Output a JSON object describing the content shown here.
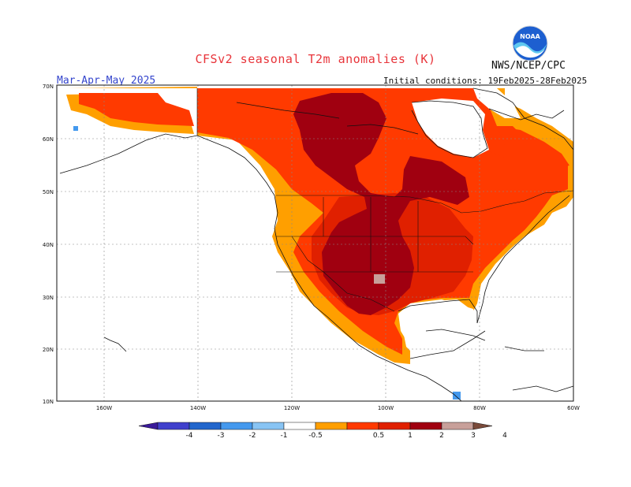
{
  "title": "CFSv2 seasonal T2m anomalies (K)",
  "agency": "NWS/NCEP/CPC",
  "period": "Mar-Apr-May 2025",
  "initial_conditions": "Initial conditions: 19Feb2025-28Feb2025",
  "lat_labels": [
    "70N",
    "60N",
    "50N",
    "40N",
    "30N",
    "20N",
    "10N"
  ],
  "lon_labels": [
    "160W",
    "140W",
    "120W",
    "100W",
    "80W",
    "60W"
  ],
  "colorbar": {
    "labels": [
      "-4",
      "-3",
      "-2",
      "-1",
      "-0.5",
      "0.5",
      "1",
      "2",
      "3",
      "4"
    ],
    "colors": [
      "#3a1a9a",
      "#4040cc",
      "#2266cc",
      "#4499ee",
      "#88c4f4",
      "#ffffff",
      "#ff9f00",
      "#ff3a00",
      "#e02000",
      "#a00010",
      "#c8a09a",
      "#7a4a3a"
    ]
  },
  "anomaly_classes": {
    "0.5-1": "#ff9f00",
    "1-2": "#ff3a00",
    "2-3": "#e02000",
    "3-4": "#a00010",
    "above-4": "#c8a09a",
    "below-neg0.5": "#4499ee"
  }
}
